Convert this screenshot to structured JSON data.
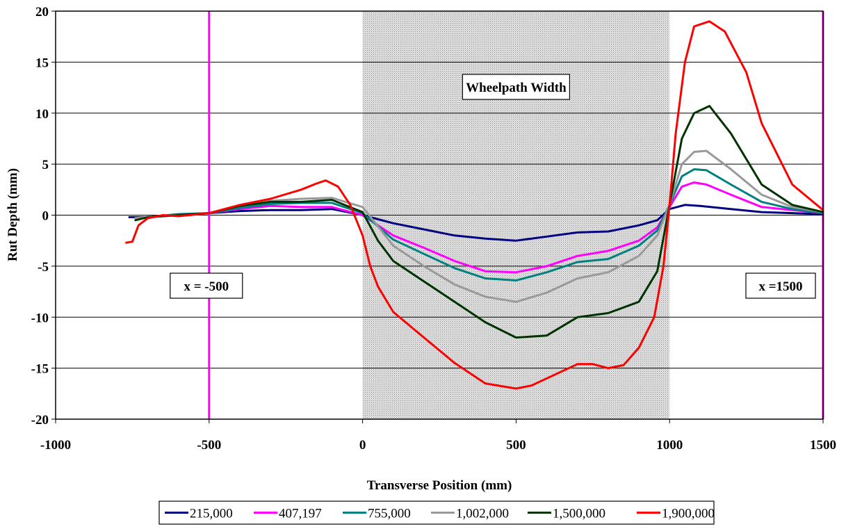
{
  "chart_data": {
    "type": "line",
    "title": "",
    "xlabel": "Transverse Position (mm)",
    "ylabel": "Rut Depth (mm)",
    "xlim": [
      -1000,
      1500
    ],
    "ylim": [
      -20,
      20
    ],
    "xticks": [
      "-1000",
      "-500",
      "0",
      "500",
      "1000",
      "1500"
    ],
    "yticks": [
      "20",
      "15",
      "10",
      "5",
      "0",
      "-5",
      "-10",
      "-15",
      "-20"
    ],
    "grid": "horizontal",
    "legend_position": "bottom",
    "shaded_region": {
      "x": [
        0,
        1000
      ],
      "label": "Wheelpath Width"
    },
    "vertical_lines": [
      {
        "x": -500,
        "label": "x = -500",
        "color": "#ff00ff"
      },
      {
        "x": 1500,
        "label": "x =1500",
        "color": "#ff00ff"
      }
    ],
    "series": [
      {
        "name": "215,000",
        "color": "#000080",
        "x": [
          -760,
          -700,
          -600,
          -500,
          -400,
          -300,
          -200,
          -100,
          0,
          100,
          200,
          300,
          400,
          500,
          600,
          700,
          800,
          900,
          960,
          1000,
          1050,
          1100,
          1200,
          1300,
          1400,
          1500
        ],
        "y": [
          -0.2,
          -0.2,
          0,
          0.2,
          0.4,
          0.5,
          0.5,
          0.6,
          0,
          -0.8,
          -1.4,
          -2.0,
          -2.3,
          -2.5,
          -2.1,
          -1.7,
          -1.6,
          -1.0,
          -0.5,
          0.6,
          1.0,
          0.9,
          0.6,
          0.3,
          0.2,
          0.1
        ]
      },
      {
        "name": "407,197",
        "color": "#ff00ff",
        "x": [
          -740,
          -700,
          -600,
          -500,
          -400,
          -300,
          -200,
          -100,
          0,
          100,
          200,
          300,
          400,
          500,
          600,
          700,
          800,
          900,
          960,
          1000,
          1040,
          1080,
          1120,
          1200,
          1300,
          1400,
          1500
        ],
        "y": [
          -0.3,
          -0.2,
          0,
          0.2,
          0.6,
          0.9,
          0.8,
          0.8,
          0,
          -2.0,
          -3.2,
          -4.5,
          -5.5,
          -5.6,
          -5.0,
          -4.0,
          -3.5,
          -2.5,
          -1.2,
          0.8,
          2.8,
          3.2,
          3.0,
          2.0,
          0.8,
          0.5,
          0.2
        ]
      },
      {
        "name": "755,000",
        "color": "#008080",
        "x": [
          -740,
          -700,
          -600,
          -500,
          -400,
          -300,
          -200,
          -100,
          0,
          100,
          200,
          300,
          400,
          500,
          600,
          700,
          800,
          900,
          960,
          1000,
          1040,
          1080,
          1120,
          1200,
          1300,
          1400,
          1500
        ],
        "y": [
          -0.3,
          -0.2,
          0.1,
          0.2,
          0.7,
          1.1,
          1.2,
          1.2,
          0.2,
          -2.4,
          -3.8,
          -5.2,
          -6.2,
          -6.4,
          -5.6,
          -4.6,
          -4.3,
          -3.0,
          -1.5,
          1.0,
          3.8,
          4.5,
          4.4,
          3.0,
          1.3,
          0.6,
          0.2
        ]
      },
      {
        "name": "1,002,000",
        "color": "#999999",
        "x": [
          -740,
          -700,
          -600,
          -500,
          -400,
          -300,
          -200,
          -100,
          0,
          100,
          200,
          300,
          400,
          500,
          600,
          700,
          800,
          900,
          960,
          1000,
          1040,
          1080,
          1120,
          1200,
          1300,
          1400,
          1500
        ],
        "y": [
          -0.3,
          -0.2,
          0,
          0.2,
          0.9,
          1.4,
          1.6,
          1.7,
          0.8,
          -3.0,
          -5.0,
          -6.8,
          -8.0,
          -8.5,
          -7.6,
          -6.2,
          -5.6,
          -4.0,
          -2.0,
          1.0,
          5.0,
          6.2,
          6.3,
          4.5,
          2.0,
          0.8,
          0.3
        ]
      },
      {
        "name": "1,500,000",
        "color": "#003300",
        "x": [
          -740,
          -700,
          -600,
          -500,
          -400,
          -300,
          -200,
          -100,
          0,
          50,
          100,
          200,
          300,
          400,
          500,
          600,
          700,
          800,
          900,
          960,
          1000,
          1040,
          1080,
          1130,
          1200,
          1300,
          1400,
          1500
        ],
        "y": [
          -0.5,
          -0.2,
          0,
          0.2,
          0.9,
          1.3,
          1.3,
          1.5,
          0.3,
          -2.5,
          -4.5,
          -6.5,
          -8.5,
          -10.5,
          -12.0,
          -11.8,
          -10.0,
          -9.6,
          -8.5,
          -5.5,
          1.0,
          7.5,
          10.0,
          10.7,
          8.0,
          3.0,
          1.0,
          0.3
        ]
      },
      {
        "name": "1,900,000",
        "color": "#ff0000",
        "x": [
          -770,
          -750,
          -730,
          -700,
          -650,
          -600,
          -500,
          -400,
          -300,
          -200,
          -150,
          -120,
          -80,
          -40,
          0,
          25,
          50,
          100,
          200,
          300,
          400,
          500,
          550,
          600,
          700,
          750,
          800,
          850,
          900,
          950,
          980,
          1000,
          1020,
          1050,
          1080,
          1130,
          1180,
          1250,
          1300,
          1400,
          1500
        ],
        "y": [
          -2.7,
          -2.6,
          -1.0,
          -0.3,
          0,
          -0.1,
          0.2,
          1.0,
          1.6,
          2.5,
          3.1,
          3.4,
          2.8,
          1.0,
          -2.0,
          -5.0,
          -7.0,
          -9.5,
          -12.0,
          -14.5,
          -16.5,
          -17.0,
          -16.7,
          -16.0,
          -14.6,
          -14.6,
          -15.0,
          -14.7,
          -13.0,
          -10.0,
          -5.0,
          1.0,
          8.0,
          15.0,
          18.5,
          19.0,
          18.0,
          14.0,
          9.0,
          3.0,
          0.5
        ]
      }
    ]
  }
}
